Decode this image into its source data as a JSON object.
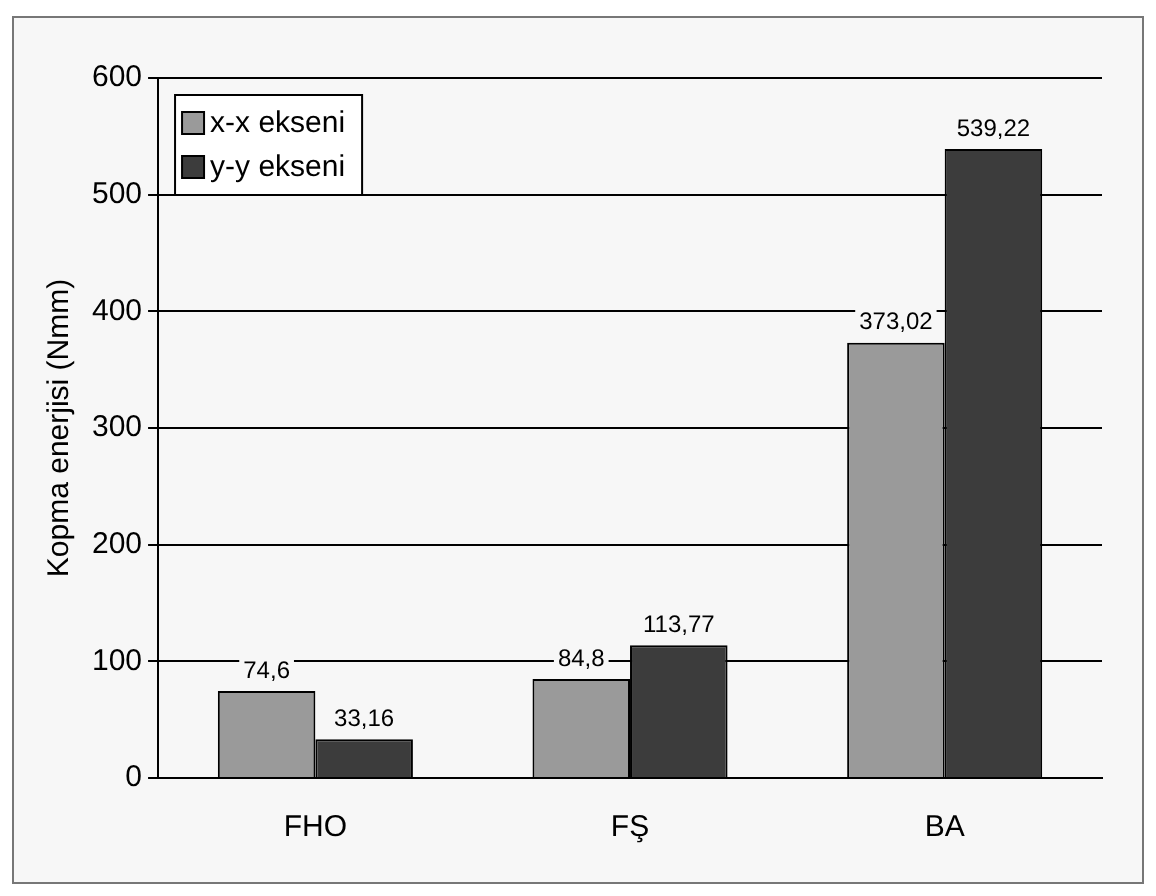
{
  "chart_data": {
    "type": "bar",
    "ylabel": "Kopma enerjisi (Nmm)",
    "categories": [
      "FHO",
      "FŞ",
      "BA"
    ],
    "series": [
      {
        "name": "x-x ekseni",
        "color": "#9a9a9a",
        "values": [
          74.6,
          84.8,
          373.02
        ],
        "value_labels": [
          "74,6",
          "84,8",
          "373,02"
        ]
      },
      {
        "name": "y-y ekseni",
        "color": "#3c3c3c",
        "values": [
          33.16,
          113.77,
          539.22
        ],
        "value_labels": [
          "33,16",
          "113,77",
          "539,22"
        ]
      }
    ],
    "ylim": [
      0,
      600
    ],
    "yticks": [
      0,
      100,
      200,
      300,
      400,
      500,
      600
    ],
    "grid": "y",
    "legend": "top left"
  }
}
